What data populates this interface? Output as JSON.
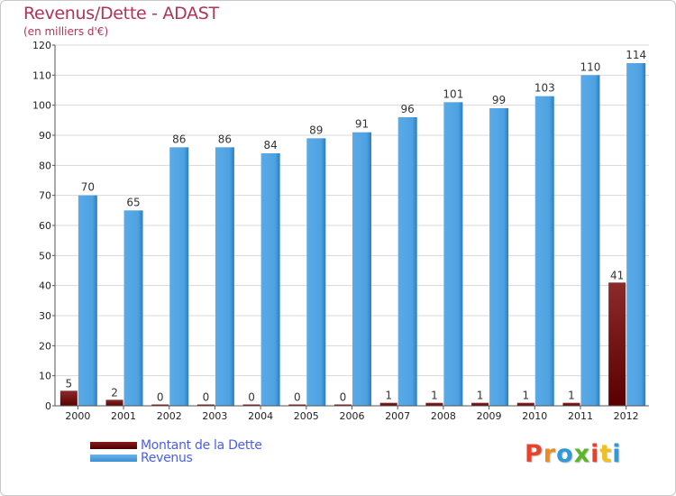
{
  "title": "Revenus/Dette - ADAST",
  "subtitle": "(en milliers d'€)",
  "logo": {
    "text": "Proxiti",
    "letters": [
      "P",
      "r",
      "o",
      "x",
      "i",
      "t",
      "i"
    ],
    "colors": [
      "#e8422a",
      "#f08c1e",
      "#2f9ad8",
      "#5cb52a",
      "#e8422a",
      "#f0c020",
      "#2f9ad8"
    ]
  },
  "colors": {
    "debt_light": "#8c2a2a",
    "debt_dark": "#5a0000",
    "revenue_light": "#5aaae6",
    "revenue_dark": "#2b7ec0",
    "grid": "#d8d8d8",
    "axis": "#555555"
  },
  "legend": [
    {
      "label": "Montant de la Dette",
      "color": "#6a0a0a"
    },
    {
      "label": "Revenus",
      "color": "#4ea2e2"
    }
  ],
  "chart_data": {
    "type": "bar",
    "categories": [
      "2000",
      "2001",
      "2002",
      "2003",
      "2004",
      "2005",
      "2006",
      "2007",
      "2008",
      "2009",
      "2010",
      "2011",
      "2012"
    ],
    "series": [
      {
        "name": "Montant de la Dette",
        "values": [
          5,
          2,
          0,
          0,
          0,
          0,
          0,
          1,
          1,
          1,
          1,
          1,
          41
        ]
      },
      {
        "name": "Revenus",
        "values": [
          70,
          65,
          86,
          86,
          84,
          89,
          91,
          96,
          101,
          99,
          103,
          110,
          114
        ]
      }
    ],
    "ylim": [
      0,
      120
    ],
    "yticks": [
      0,
      10,
      20,
      30,
      40,
      50,
      60,
      70,
      80,
      90,
      100,
      110,
      120
    ],
    "grid": true,
    "legend_position": "bottom-left"
  }
}
